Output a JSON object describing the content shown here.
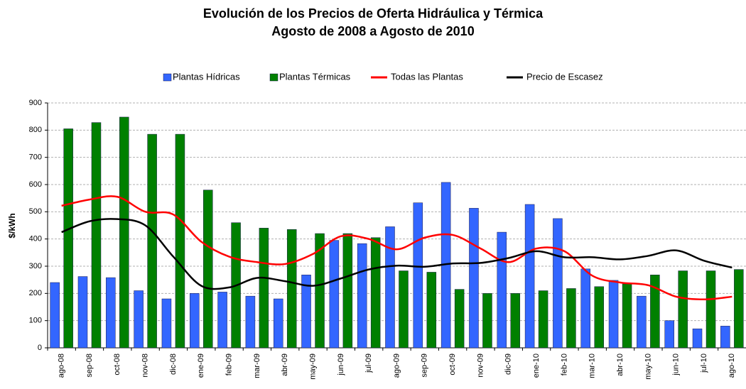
{
  "chart_data": {
    "type": "bar",
    "title": "Evolución de los Precios de Oferta Hidráulica y Térmica",
    "subtitle": "Agosto de 2008 a Agosto de 2010",
    "y_label": "$/kWh",
    "categories": [
      "ago-08",
      "sep-08",
      "oct-08",
      "nov-08",
      "dic-08",
      "ene-09",
      "feb-09",
      "mar-09",
      "abr-09",
      "may-09",
      "jun-09",
      "jul-09",
      "ago-09",
      "sep-09",
      "oct-09",
      "nov-09",
      "dic-09",
      "ene-10",
      "feb-10",
      "mar-10",
      "abr-10",
      "may-10",
      "jun-10",
      "jul-10",
      "ago-10"
    ],
    "series": [
      {
        "name": "Plantas Hídricas",
        "type": "bar",
        "color": "#3366ff",
        "values": [
          240,
          262,
          258,
          210,
          180,
          200,
          205,
          190,
          180,
          268,
          395,
          383,
          445,
          533,
          608,
          513,
          425,
          527,
          475,
          290,
          248,
          190,
          100,
          70,
          80
        ]
      },
      {
        "name": "Plantas Térmicas",
        "type": "bar",
        "color": "#008000",
        "values": [
          805,
          828,
          848,
          785,
          785,
          580,
          460,
          440,
          435,
          420,
          420,
          405,
          283,
          278,
          215,
          200,
          200,
          210,
          218,
          225,
          235,
          268,
          283,
          283,
          288
        ]
      },
      {
        "name": "Todas las Plantas",
        "type": "line",
        "color": "#ff0000",
        "values": [
          522,
          545,
          555,
          500,
          490,
          390,
          335,
          315,
          308,
          345,
          410,
          400,
          362,
          405,
          415,
          365,
          315,
          365,
          355,
          265,
          240,
          230,
          188,
          178,
          188
        ]
      },
      {
        "name": "Precio de Escasez",
        "type": "line",
        "color": "#000000",
        "values": [
          425,
          465,
          473,
          450,
          335,
          228,
          222,
          257,
          245,
          228,
          255,
          288,
          302,
          298,
          310,
          312,
          330,
          355,
          333,
          333,
          325,
          338,
          358,
          320,
          295
        ]
      }
    ],
    "ylim": [
      0,
      900
    ],
    "yticks": [
      0,
      100,
      200,
      300,
      400,
      500,
      600,
      700,
      800,
      900
    ],
    "grid": true,
    "legend": "top"
  }
}
